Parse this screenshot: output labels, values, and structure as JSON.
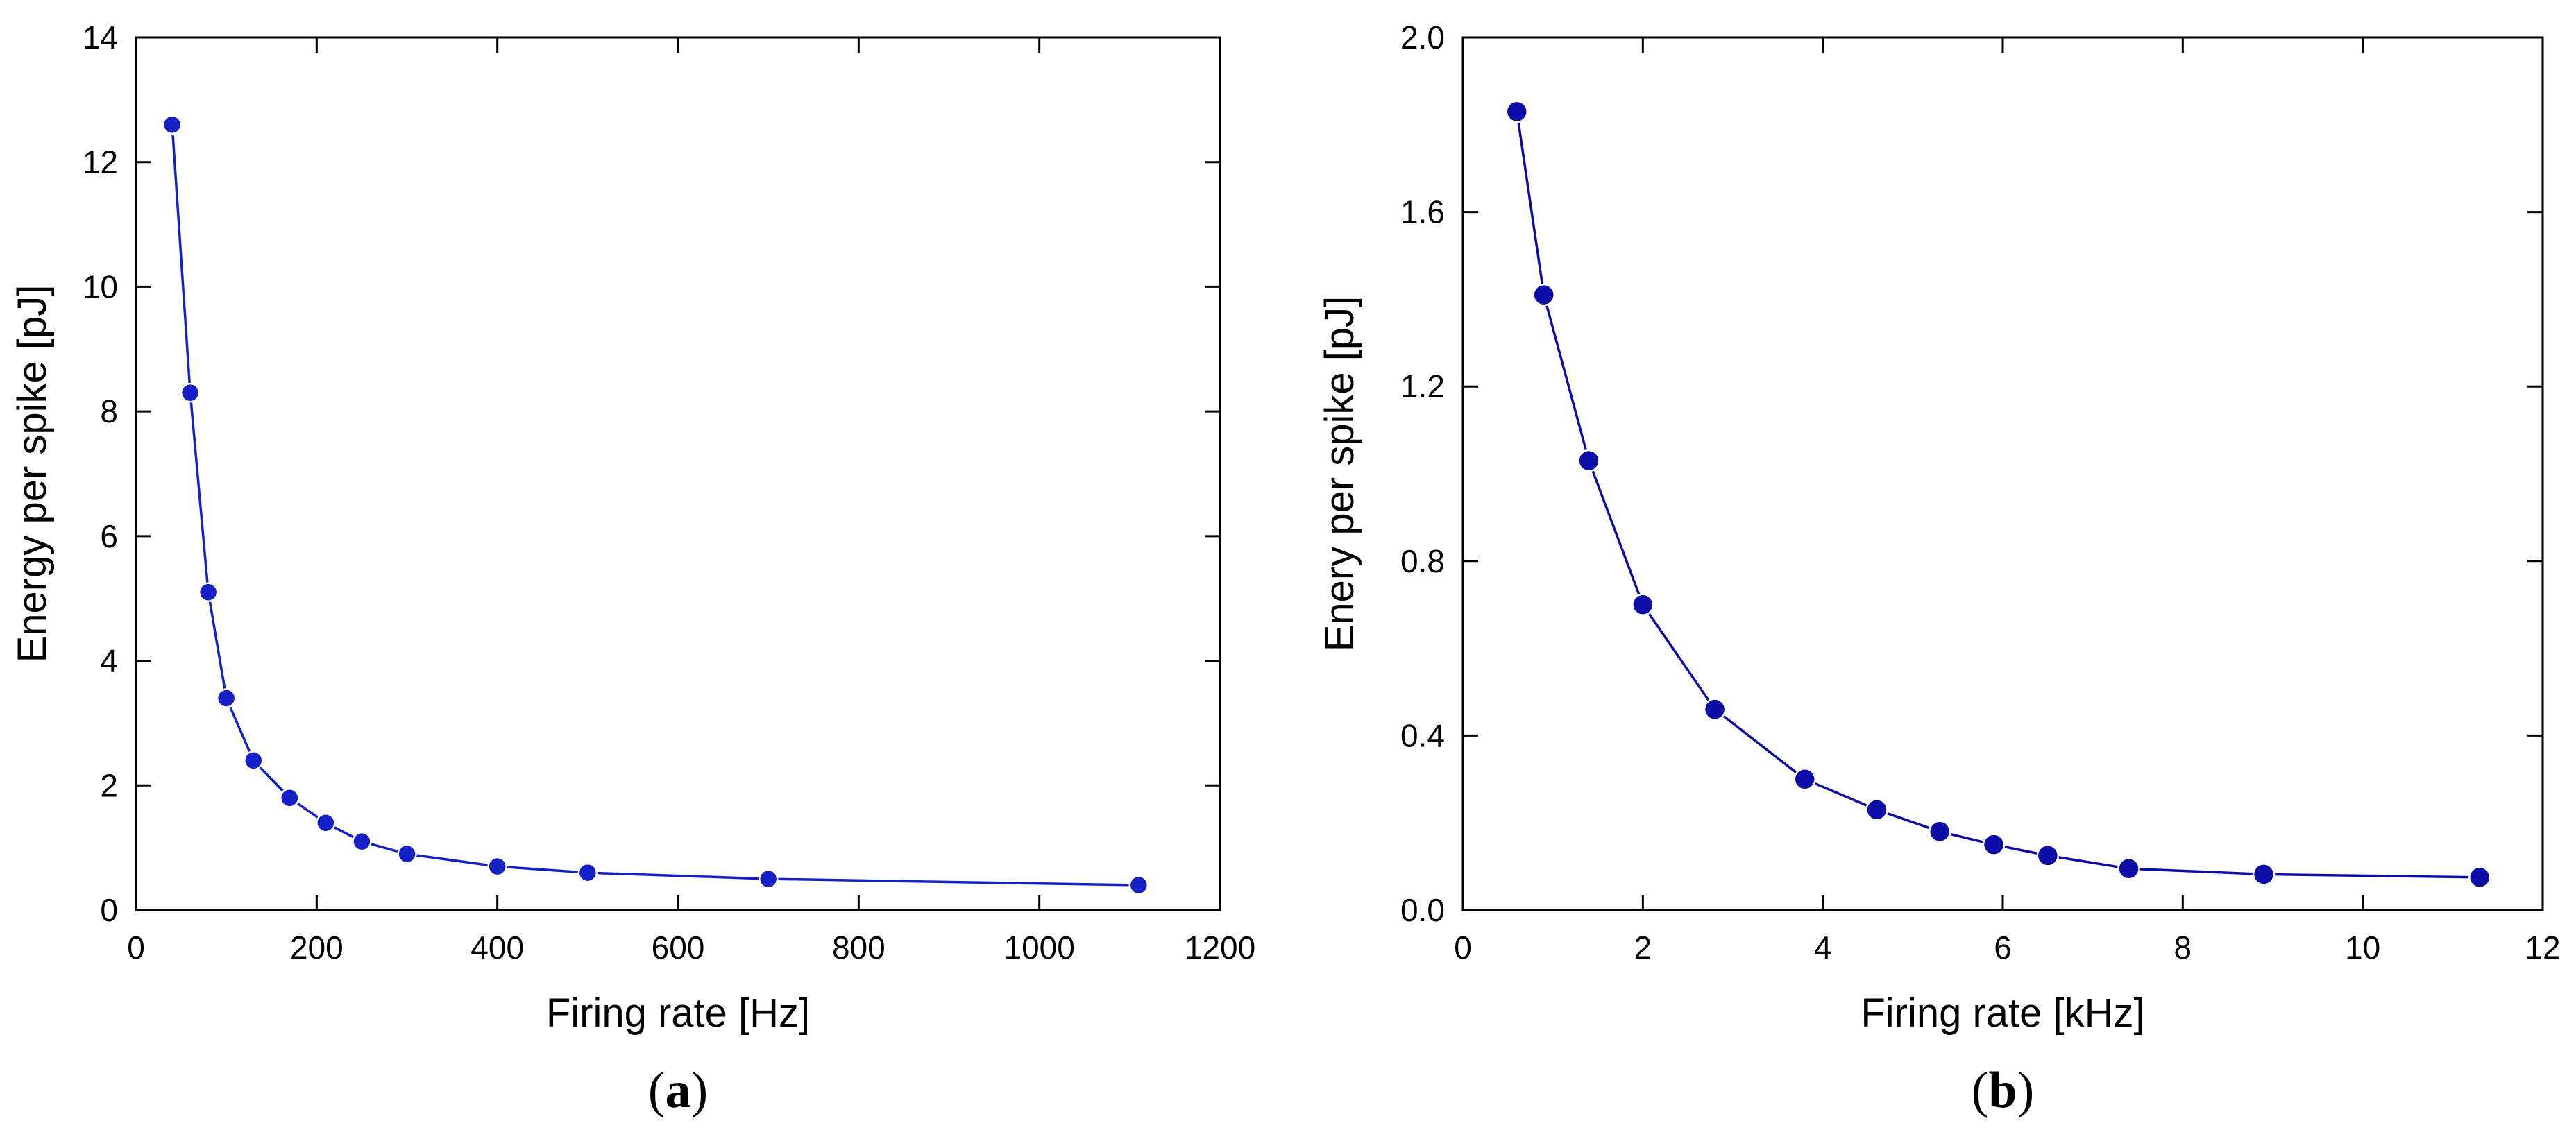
{
  "chart_data": [
    {
      "type": "line",
      "panel_label": {
        "open": "(",
        "letter": "a",
        "close": ")"
      },
      "xlabel": "Firing rate [Hz]",
      "ylabel": "Energy per spike [pJ]",
      "xlim": [
        0,
        1200
      ],
      "ylim": [
        0,
        14
      ],
      "xticks": [
        "0",
        "200",
        "400",
        "600",
        "800",
        "1000",
        "1200"
      ],
      "yticks": [
        "0",
        "2",
        "4",
        "6",
        "8",
        "10",
        "12",
        "14"
      ],
      "color": "#1520c8",
      "markers": true,
      "grid": false,
      "x": [
        40,
        60,
        80,
        100,
        130,
        170,
        210,
        250,
        300,
        400,
        500,
        700,
        1110
      ],
      "y": [
        12.6,
        8.3,
        5.1,
        3.4,
        2.4,
        1.8,
        1.4,
        1.1,
        0.9,
        0.7,
        0.6,
        0.5,
        0.4
      ]
    },
    {
      "type": "line",
      "panel_label": {
        "open": "(",
        "letter": "b",
        "close": ")"
      },
      "xlabel": "Firing rate [kHz]",
      "ylabel": "Enery per spike [pJ]",
      "xlim": [
        0,
        12
      ],
      "ylim": [
        0,
        2.0
      ],
      "xticks": [
        "0",
        "2",
        "4",
        "6",
        "8",
        "10",
        "12"
      ],
      "yticks": [
        "0.0",
        "0.4",
        "0.8",
        "1.2",
        "1.6",
        "2.0"
      ],
      "color": "#0c0ca6",
      "markers": true,
      "grid": false,
      "x": [
        0.6,
        0.9,
        1.4,
        2.0,
        2.8,
        3.8,
        4.6,
        5.3,
        5.9,
        6.5,
        7.4,
        8.9,
        11.3
      ],
      "y": [
        1.83,
        1.41,
        1.03,
        0.7,
        0.46,
        0.3,
        0.23,
        0.18,
        0.15,
        0.125,
        0.095,
        0.082,
        0.075
      ]
    }
  ]
}
